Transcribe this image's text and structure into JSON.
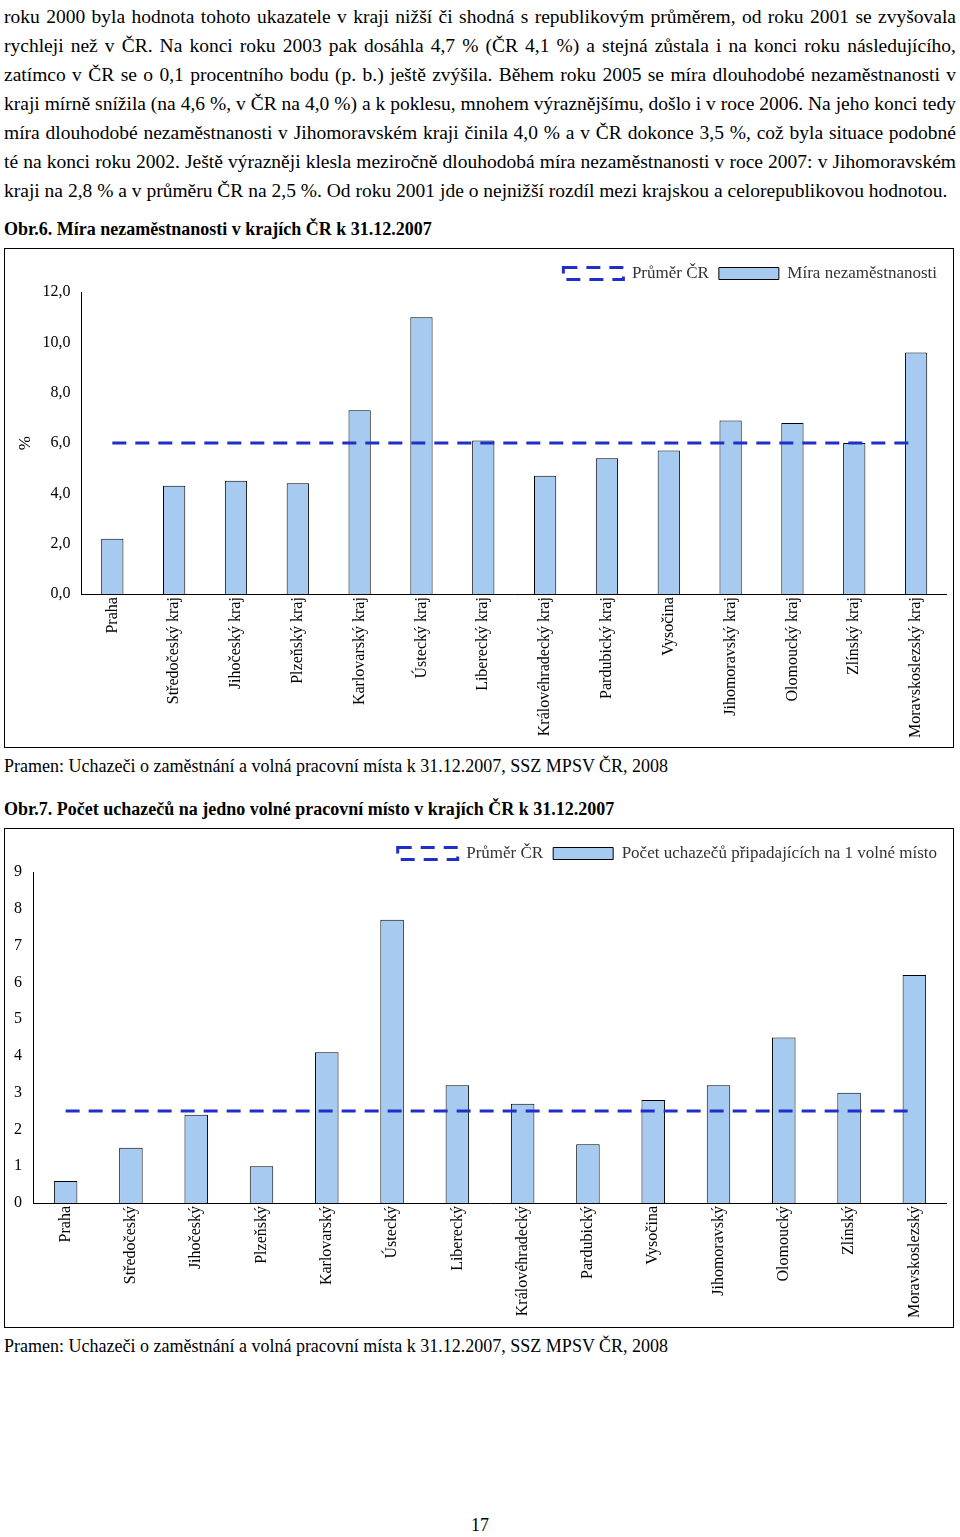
{
  "paragraph": "roku 2000 byla hodnota tohoto ukazatele v kraji nižší či shodná s republikovým průměrem, od roku 2001 se zvyšovala rychleji než v ČR. Na konci roku 2003 pak dosáhla 4,7 % (ČR 4,1 %) a stejná zůstala i na konci roku následujícího, zatímco v ČR se o 0,1 procentního bodu (p. b.) ještě zvýšila. Během roku 2005 se míra dlouhodobé nezaměstnanosti v kraji mírně snížila (na 4,6 %, v ČR na 4,0 %) a k poklesu, mnohem výraznějšímu, došlo i v roce 2006. Na jeho konci tedy míra dlouhodobé nezaměstnanosti v Jihomoravském kraji činila 4,0 % a v ČR dokonce 3,5 %, což byla situace podobné té na konci roku 2002. Ještě výrazněji klesla meziročně dlouhodobá míra nezaměstnanosti v roce 2007: v Jihomoravském kraji na 2,8 % a v průměru ČR na 2,5 %. Od roku 2001 jde o nejnižší rozdíl mezi krajskou a celorepublikovou hodnotou.",
  "page_number": "17",
  "chart_data": [
    {
      "type": "bar",
      "title": "Obr.6. Míra nezaměstnanosti v krajích ČR k 31.12.2007",
      "y_label": "%",
      "categories": [
        "Praha",
        "Středočeský kraj",
        "Jihočeský kraj",
        "Plzeňský kraj",
        "Karlovarský kraj",
        "Ústecký kraj",
        "Liberecký kraj",
        "Královéhradecký kraj",
        "Pardubický kraj",
        "Vysočina",
        "Jihomoravský kraj",
        "Olomoucký kraj",
        "Zlínský kraj",
        "Moravskoslezský kraj"
      ],
      "series": [
        {
          "name": "Míra nezaměstnanosti",
          "type": "bar",
          "color": "#a6caf0",
          "values": [
            2.2,
            4.3,
            4.5,
            4.4,
            7.3,
            11.0,
            6.1,
            4.7,
            5.4,
            5.7,
            6.9,
            6.8,
            6.0,
            9.6
          ]
        },
        {
          "name": "Průměr ČR",
          "type": "line",
          "line_style": "dashed",
          "color": "#1f2fc8",
          "values": [
            6.0,
            6.0,
            6.0,
            6.0,
            6.0,
            6.0,
            6.0,
            6.0,
            6.0,
            6.0,
            6.0,
            6.0,
            6.0,
            6.0
          ]
        }
      ],
      "ylim": [
        0,
        12
      ],
      "yticks": [
        {
          "value": 0,
          "label": "0,0"
        },
        {
          "value": 2,
          "label": "2,0"
        },
        {
          "value": 4,
          "label": "4,0"
        },
        {
          "value": 6,
          "label": "6,0"
        },
        {
          "value": 8,
          "label": "8,0"
        },
        {
          "value": 10,
          "label": "10,0"
        },
        {
          "value": 12,
          "label": "12,0"
        }
      ],
      "grid": false,
      "legend": "upper right",
      "source": "Pramen: Uchazeči o zaměstnání a volná pracovní místa k 31.12.2007, SSZ MPSV ČR, 2008"
    },
    {
      "type": "bar",
      "title": "Obr.7. Počet uchazečů na jedno volné pracovní místo v krajích ČR k 31.12.2007",
      "categories": [
        "Praha",
        "Středočeský",
        "Jihočeský",
        "Plzeňský",
        "Karlovarský",
        "Ústecký",
        "Liberecký",
        "Královéhradecký",
        "Pardubický",
        "Vysočina",
        "Jihomoravský",
        "Olomoucký",
        "Zlínský",
        "Moravskoslezský"
      ],
      "series": [
        {
          "name": "Počet uchazečů připadajících na 1 volné místo",
          "type": "bar",
          "color": "#a6caf0",
          "values": [
            0.6,
            1.5,
            2.4,
            1.0,
            4.1,
            7.7,
            3.2,
            2.7,
            1.6,
            2.8,
            3.2,
            4.5,
            3.0,
            6.2
          ]
        },
        {
          "name": "Průměr ČR",
          "type": "line",
          "line_style": "dashed",
          "color": "#1f2fc8",
          "values": [
            2.5,
            2.5,
            2.5,
            2.5,
            2.5,
            2.5,
            2.5,
            2.5,
            2.5,
            2.5,
            2.5,
            2.5,
            2.5,
            2.5
          ]
        }
      ],
      "ylim": [
        0,
        9
      ],
      "yticks": [
        0,
        1,
        2,
        3,
        4,
        5,
        6,
        7,
        8,
        9
      ],
      "grid": false,
      "legend": "upper right",
      "source": "Pramen: Uchazeči o zaměstnání a volná pracovní místa k 31.12.2007, SSZ MPSV ČR, 2008"
    }
  ]
}
